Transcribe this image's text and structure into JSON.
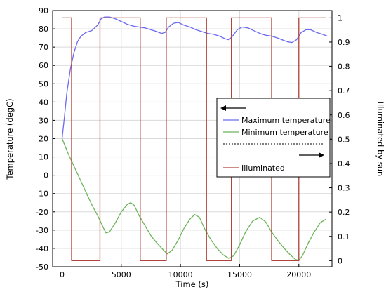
{
  "chart_data": {
    "type": "line",
    "xlabel": "Time (s)",
    "ylabel_left": "Temperature (degC)",
    "ylabel_right": "Illuminated by sun",
    "xlim": [
      -800,
      22800
    ],
    "ylim_left": [
      -50,
      90
    ],
    "ylim_right": [
      -0.025,
      1.03
    ],
    "x_ticks": [
      0,
      5000,
      10000,
      15000,
      20000
    ],
    "y_ticks_left": [
      -50,
      -40,
      -30,
      -20,
      -10,
      0,
      10,
      20,
      30,
      40,
      50,
      60,
      70,
      80,
      90
    ],
    "y_ticks_right": [
      0,
      0.1,
      0.2,
      0.3,
      0.4,
      0.5,
      0.6,
      0.7,
      0.8,
      0.9,
      1
    ],
    "grid": true,
    "legend_position": "center-right",
    "series": [
      {
        "name": "Maximum temperature",
        "axis": "left",
        "color": "#6a6af0",
        "points": [
          [
            0,
            20
          ],
          [
            200,
            32
          ],
          [
            400,
            45
          ],
          [
            700,
            58
          ],
          [
            1000,
            67
          ],
          [
            1300,
            73
          ],
          [
            1600,
            76
          ],
          [
            2000,
            78
          ],
          [
            2500,
            79
          ],
          [
            3000,
            82
          ],
          [
            3300,
            85.5
          ],
          [
            3600,
            86.5
          ],
          [
            4000,
            86.5
          ],
          [
            4500,
            85.5
          ],
          [
            5000,
            84
          ],
          [
            5500,
            82.5
          ],
          [
            6000,
            81.5
          ],
          [
            6500,
            81
          ],
          [
            7000,
            80.5
          ],
          [
            7500,
            79.5
          ],
          [
            8000,
            78.5
          ],
          [
            8400,
            77.5
          ],
          [
            8700,
            78
          ],
          [
            9000,
            81
          ],
          [
            9400,
            83
          ],
          [
            9800,
            83.5
          ],
          [
            10300,
            82
          ],
          [
            10800,
            81
          ],
          [
            11300,
            79.5
          ],
          [
            11800,
            78.5
          ],
          [
            12300,
            77.5
          ],
          [
            12800,
            77
          ],
          [
            13300,
            76
          ],
          [
            13800,
            74.5
          ],
          [
            14100,
            74
          ],
          [
            14400,
            76
          ],
          [
            14800,
            79.5
          ],
          [
            15200,
            81
          ],
          [
            15700,
            80.5
          ],
          [
            16200,
            79
          ],
          [
            16700,
            77.5
          ],
          [
            17200,
            76.5
          ],
          [
            17700,
            76
          ],
          [
            18200,
            75
          ],
          [
            18600,
            74
          ],
          [
            19000,
            73
          ],
          [
            19400,
            72.5
          ],
          [
            19800,
            74
          ],
          [
            20200,
            78
          ],
          [
            20600,
            79.5
          ],
          [
            21000,
            79.5
          ],
          [
            21500,
            78
          ],
          [
            22000,
            77
          ],
          [
            22400,
            76
          ]
        ]
      },
      {
        "name": "Minimum temperature",
        "axis": "left",
        "color": "#6cb45a",
        "points": [
          [
            0,
            20
          ],
          [
            500,
            12
          ],
          [
            1000,
            5
          ],
          [
            1500,
            -2
          ],
          [
            2000,
            -9
          ],
          [
            2500,
            -16
          ],
          [
            3000,
            -22
          ],
          [
            3400,
            -27.5
          ],
          [
            3700,
            -31.5
          ],
          [
            4000,
            -31
          ],
          [
            4500,
            -26
          ],
          [
            5000,
            -20
          ],
          [
            5500,
            -16
          ],
          [
            5800,
            -15
          ],
          [
            6100,
            -16.5
          ],
          [
            6500,
            -22
          ],
          [
            7000,
            -27.5
          ],
          [
            7500,
            -33
          ],
          [
            8000,
            -37
          ],
          [
            8500,
            -40.5
          ],
          [
            8900,
            -43
          ],
          [
            9300,
            -41
          ],
          [
            9800,
            -35.5
          ],
          [
            10300,
            -29
          ],
          [
            10800,
            -24
          ],
          [
            11200,
            -21.5
          ],
          [
            11600,
            -23
          ],
          [
            12100,
            -30
          ],
          [
            12600,
            -35.5
          ],
          [
            13100,
            -40
          ],
          [
            13600,
            -43.5
          ],
          [
            14100,
            -45.5
          ],
          [
            14500,
            -44
          ],
          [
            15000,
            -38
          ],
          [
            15500,
            -31
          ],
          [
            16100,
            -25
          ],
          [
            16700,
            -23
          ],
          [
            17200,
            -25.5
          ],
          [
            17700,
            -31
          ],
          [
            18200,
            -35.5
          ],
          [
            18700,
            -39.5
          ],
          [
            19200,
            -43
          ],
          [
            19700,
            -46
          ],
          [
            20000,
            -46.5
          ],
          [
            20300,
            -44
          ],
          [
            20800,
            -37
          ],
          [
            21300,
            -31
          ],
          [
            21800,
            -26
          ],
          [
            22300,
            -24
          ]
        ]
      },
      {
        "name": "Illuminated",
        "axis": "right",
        "color": "#b0443a",
        "points": [
          [
            0,
            1
          ],
          [
            800,
            1
          ],
          [
            800,
            0
          ],
          [
            3200,
            0
          ],
          [
            3200,
            1
          ],
          [
            6600,
            1
          ],
          [
            6600,
            0
          ],
          [
            8800,
            0
          ],
          [
            8800,
            1
          ],
          [
            12200,
            1
          ],
          [
            12200,
            0
          ],
          [
            14300,
            0
          ],
          [
            14300,
            1
          ],
          [
            17700,
            1
          ],
          [
            17700,
            0
          ],
          [
            20000,
            0
          ],
          [
            20000,
            1
          ],
          [
            22300,
            1
          ]
        ]
      }
    ]
  }
}
